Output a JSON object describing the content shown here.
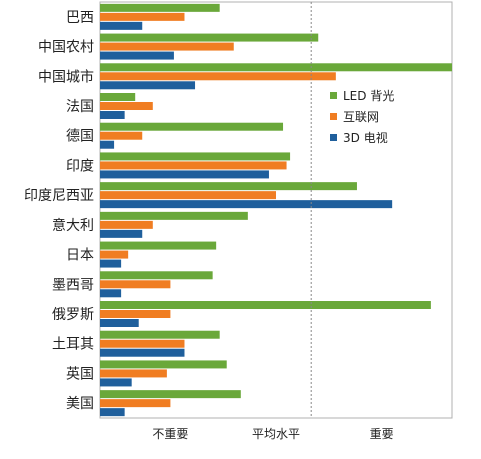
{
  "chart_data": {
    "type": "bar",
    "orientation": "horizontal",
    "categories": [
      "巴西",
      "中国农村",
      "中国城市",
      "法国",
      "德国",
      "印度",
      "印度尼西亚",
      "意大利",
      "日本",
      "墨西哥",
      "俄罗斯",
      "土耳其",
      "英国",
      "美国"
    ],
    "series": [
      {
        "name": "LED 背光",
        "color": "#6aa83a",
        "values": [
          34,
          62,
          100,
          10,
          52,
          54,
          73,
          42,
          33,
          32,
          94,
          34,
          36,
          40
        ]
      },
      {
        "name": "互联网",
        "color": "#f07d22",
        "values": [
          24,
          38,
          67,
          15,
          12,
          53,
          50,
          15,
          8,
          20,
          20,
          24,
          19,
          20
        ]
      },
      {
        "name": "3D 电视",
        "color": "#1f5f9c",
        "values": [
          12,
          21,
          27,
          7,
          4,
          48,
          83,
          12,
          6,
          6,
          11,
          24,
          9,
          7
        ]
      }
    ],
    "xlim": [
      0,
      100
    ],
    "xticks": [
      {
        "label": "不重要",
        "value": 20
      },
      {
        "label": "平均水平",
        "value": 50
      },
      {
        "label": "重要",
        "value": 80
      }
    ],
    "reference_line": {
      "value": 60,
      "style": "dotted"
    },
    "legend": {
      "placement": "center-right"
    },
    "grid": false
  }
}
